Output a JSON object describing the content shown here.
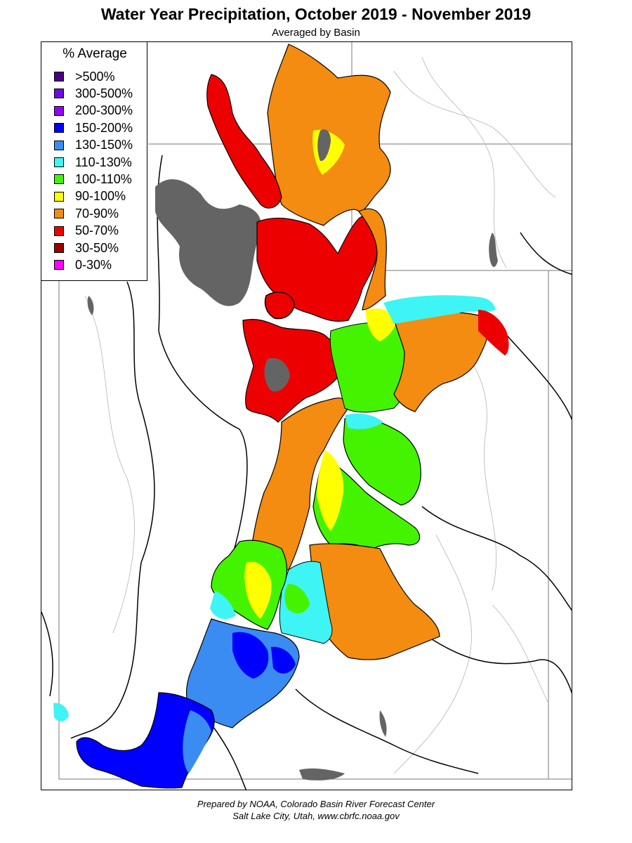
{
  "title": "Water Year Precipitation, October 2019 - November 2019",
  "subtitle": "Averaged by Basin",
  "legend": {
    "title": "% Average",
    "items": [
      {
        "label": ">500%",
        "color": "#4b0082"
      },
      {
        "label": "300-500%",
        "color": "#6a0dde"
      },
      {
        "label": "200-300%",
        "color": "#9400ff"
      },
      {
        "label": "150-200%",
        "color": "#0000ff"
      },
      {
        "label": "130-150%",
        "color": "#3a8cf2"
      },
      {
        "label": "110-130%",
        "color": "#3ff4f4"
      },
      {
        "label": "100-110%",
        "color": "#44f300"
      },
      {
        "label": "90-100%",
        "color": "#ffff00"
      },
      {
        "label": "70-90%",
        "color": "#f38c10"
      },
      {
        "label": "50-70%",
        "color": "#ed0000"
      },
      {
        "label": "30-50%",
        "color": "#9a0000"
      },
      {
        "label": "0-30%",
        "color": "#ff00ff"
      }
    ]
  },
  "colors": {
    "lake": "#646464",
    "river": "#9a9a9a",
    "boundary": "#000000"
  },
  "credit": {
    "line1": "Prepared by NOAA, Colorado Basin River Forecast Center",
    "line2": "Salt Lake City, Utah, www.cbrfc.noaa.gov"
  }
}
